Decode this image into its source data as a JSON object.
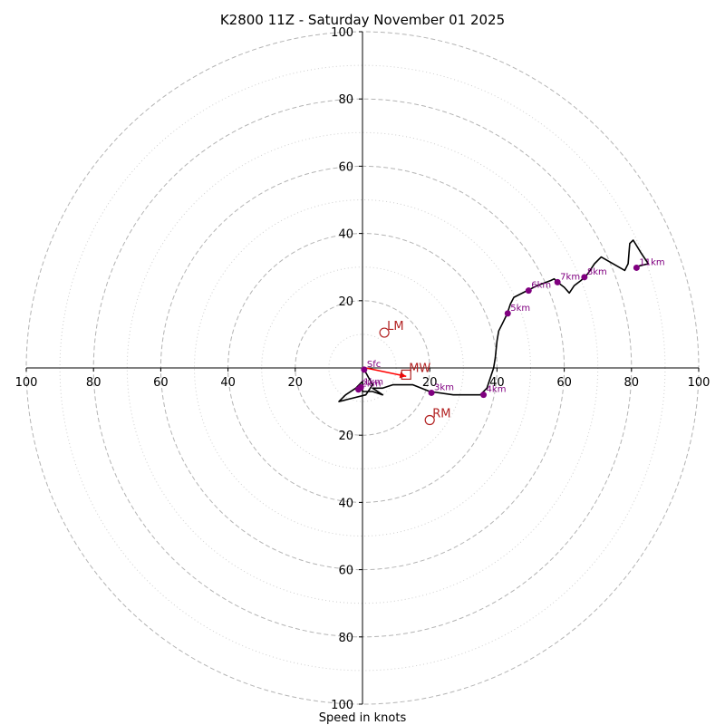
{
  "chart_data": {
    "type": "hodograph",
    "title": "K2800 11Z - Saturday November 01 2025",
    "xlabel": "Speed in knots",
    "axis_range": [
      -100,
      100
    ],
    "ring_major": [
      20,
      40,
      60,
      80,
      100
    ],
    "ring_minor": [
      10,
      30,
      50,
      70,
      90
    ],
    "x_ticks": [
      {
        "value": -100,
        "label": "100"
      },
      {
        "value": -80,
        "label": "80"
      },
      {
        "value": -60,
        "label": "60"
      },
      {
        "value": -40,
        "label": "40"
      },
      {
        "value": -20,
        "label": "20"
      },
      {
        "value": 20,
        "label": "20"
      },
      {
        "value": 40,
        "label": "40"
      },
      {
        "value": 60,
        "label": "60"
      },
      {
        "value": 80,
        "label": "80"
      },
      {
        "value": 100,
        "label": "100"
      }
    ],
    "y_ticks": [
      {
        "value": 100,
        "label": "100"
      },
      {
        "value": 80,
        "label": "80"
      },
      {
        "value": 60,
        "label": "60"
      },
      {
        "value": 40,
        "label": "40"
      },
      {
        "value": 20,
        "label": "20"
      },
      {
        "value": -20,
        "label": "20"
      },
      {
        "value": -40,
        "label": "40"
      },
      {
        "value": -60,
        "label": "60"
      },
      {
        "value": -80,
        "label": "80"
      },
      {
        "value": -100,
        "label": "100"
      }
    ],
    "trace": [
      [
        0.5,
        -0.5
      ],
      [
        3,
        -5
      ],
      [
        1,
        -8
      ],
      [
        -3,
        -9
      ],
      [
        -7,
        -10
      ],
      [
        -5,
        -8
      ],
      [
        -2,
        -6
      ],
      [
        0,
        -4
      ],
      [
        0,
        -7
      ],
      [
        3,
        -7
      ],
      [
        6,
        -8
      ],
      [
        3,
        -6
      ],
      [
        6,
        -6
      ],
      [
        9,
        -5
      ],
      [
        15,
        -5
      ],
      [
        20,
        -7
      ],
      [
        27,
        -8
      ],
      [
        35,
        -8
      ],
      [
        37,
        -6
      ],
      [
        38,
        -3
      ],
      [
        39,
        0
      ],
      [
        39.5,
        3
      ],
      [
        40,
        8
      ],
      [
        40.5,
        11
      ],
      [
        41.5,
        13
      ],
      [
        43,
        16
      ],
      [
        44,
        19
      ],
      [
        45,
        21
      ],
      [
        48,
        22.5
      ],
      [
        49,
        23
      ],
      [
        52,
        24.5
      ],
      [
        56,
        26
      ],
      [
        57,
        26.5
      ],
      [
        58,
        25.5
      ],
      [
        60,
        24
      ],
      [
        61.5,
        22.3
      ],
      [
        63,
        24.5
      ],
      [
        65,
        26
      ],
      [
        66,
        27
      ],
      [
        67,
        28
      ],
      [
        69,
        31
      ],
      [
        71,
        33
      ],
      [
        78,
        29
      ],
      [
        79,
        31
      ],
      [
        79.5,
        37
      ],
      [
        80.5,
        38
      ],
      [
        83,
        34
      ],
      [
        85,
        31
      ],
      [
        81,
        30
      ]
    ],
    "height_markers": [
      {
        "label": "Sfc",
        "u": 0.5,
        "v": -0.5
      },
      {
        "label": "1km",
        "u": -0.5,
        "v": -5.8
      },
      {
        "label": "2km",
        "u": -1.2,
        "v": -6.4
      },
      {
        "label": "3km",
        "u": 20.5,
        "v": -7.4
      },
      {
        "label": "4km",
        "u": 36,
        "v": -8
      },
      {
        "label": "5km",
        "u": 43.2,
        "v": 16.2
      },
      {
        "label": "6km",
        "u": 49.4,
        "v": 23
      },
      {
        "label": "7km",
        "u": 58,
        "v": 25.5
      },
      {
        "label": "8km",
        "u": 66,
        "v": 27
      },
      {
        "label": "11km",
        "u": 81.5,
        "v": 29.8
      }
    ],
    "storm_motion": [
      {
        "label": "LM",
        "u": 6.5,
        "v": 10.5,
        "marker": "circle"
      },
      {
        "label": "RM",
        "u": 20,
        "v": -15.5,
        "marker": "circle"
      },
      {
        "label": "MW",
        "u": 13,
        "v": -2,
        "marker": "square"
      }
    ],
    "shear_arrow": {
      "from": [
        1,
        0
      ],
      "to": [
        13,
        -2.5
      ]
    },
    "colors": {
      "trace": "#000000",
      "height_marker": "#800080",
      "storm_marker": "#b22222",
      "arrow": "#ff0000",
      "ring": "#b4b4b4",
      "axis": "#000000"
    }
  }
}
